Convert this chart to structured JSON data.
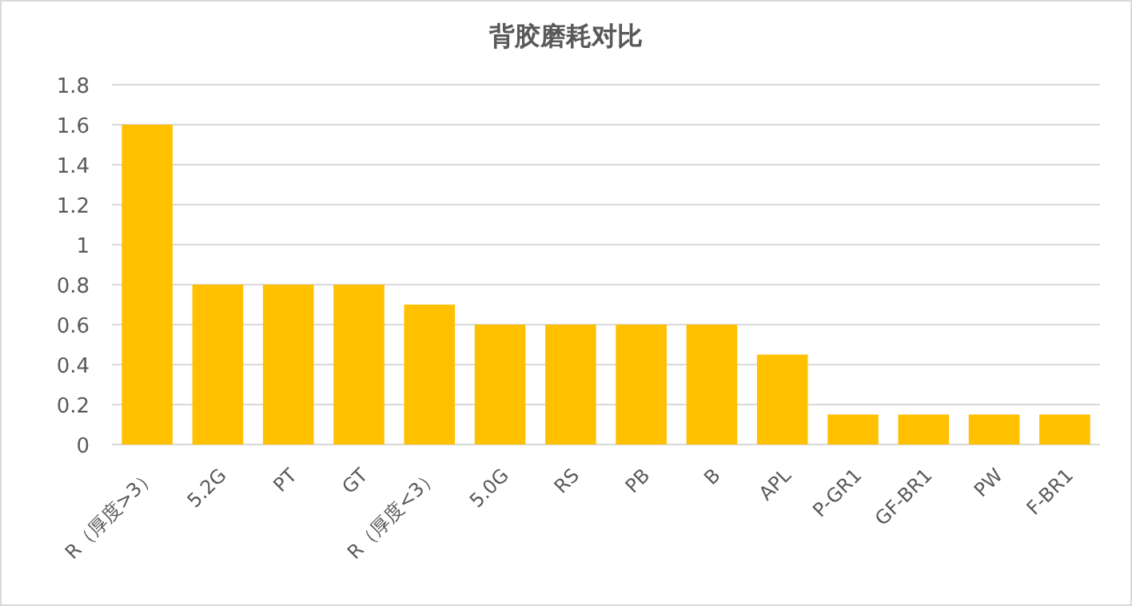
{
  "chart_data": {
    "type": "bar",
    "title": "背胶磨耗对比",
    "categories": [
      "R（厚度>3）",
      "5.2G",
      "PT",
      "GT",
      "R（厚度<3）",
      "5.0G",
      "RS",
      "PB",
      "B",
      "APL",
      "P-GR1",
      "GF-BR1",
      "PW",
      "F-BR1"
    ],
    "values": [
      1.6,
      0.8,
      0.8,
      0.8,
      0.7,
      0.6,
      0.6,
      0.6,
      0.6,
      0.45,
      0.15,
      0.15,
      0.15,
      0.15
    ],
    "color": "#ffc000",
    "ylim": [
      0,
      1.8
    ],
    "yticks": [
      0,
      0.2,
      0.4,
      0.6,
      0.8,
      1,
      1.2,
      1.4,
      1.6,
      1.8
    ],
    "grid": "y"
  }
}
